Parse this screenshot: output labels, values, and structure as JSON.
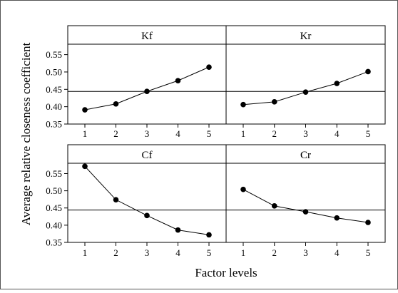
{
  "chart_data": {
    "type": "line",
    "xlabel": "Factor levels",
    "ylabel": "Average relative closeness coefficient",
    "x": [
      1,
      2,
      3,
      4,
      5
    ],
    "ylim": [
      0.35,
      0.58
    ],
    "yticks": [
      0.35,
      0.4,
      0.45,
      0.5,
      0.55
    ],
    "ytick_labels": [
      "0.35",
      "0.40",
      "0.45",
      "0.50",
      "0.55"
    ],
    "xtick_labels": [
      "1",
      "2",
      "3",
      "4",
      "5"
    ],
    "overall_mean": 0.444,
    "grid": false,
    "panels": [
      {
        "title": "Kf",
        "values": [
          0.391,
          0.408,
          0.444,
          0.475,
          0.514
        ]
      },
      {
        "title": "Kr",
        "values": [
          0.406,
          0.414,
          0.442,
          0.467,
          0.501
        ]
      },
      {
        "title": "Cf",
        "values": [
          0.571,
          0.474,
          0.428,
          0.386,
          0.372
        ]
      },
      {
        "title": "Cr",
        "values": [
          0.504,
          0.456,
          0.439,
          0.421,
          0.408
        ]
      }
    ]
  }
}
